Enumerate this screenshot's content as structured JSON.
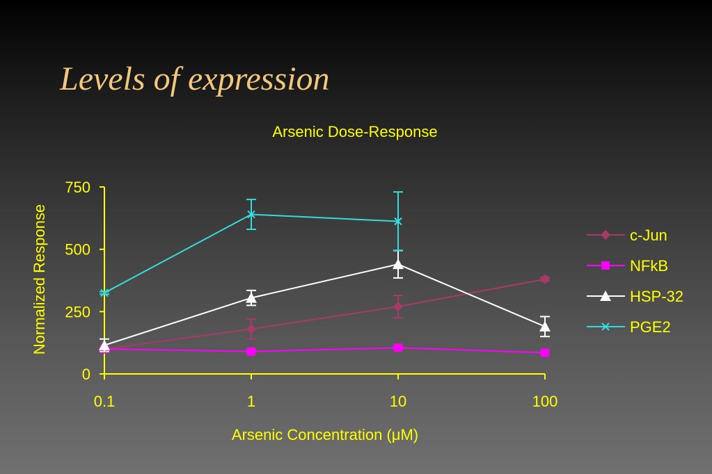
{
  "slide": {
    "title": "Levels of expression"
  },
  "colors": {
    "axis": "#ffff00",
    "c_jun": "#a83a6a",
    "nfkb": "#ff00ff",
    "hsp32": "#ffffff",
    "pge2": "#33dddd"
  },
  "chart_data": {
    "type": "line",
    "title": "Arsenic Dose-Response",
    "xlabel": "Arsenic Concentration (μM)",
    "ylabel": "Normalized Response",
    "xscale": "log",
    "x": [
      0.1,
      1,
      10,
      100
    ],
    "x_tick_labels": [
      "0.1",
      "1",
      "10",
      "100"
    ],
    "yticks": [
      0,
      250,
      500,
      750
    ],
    "ylim": [
      0,
      750
    ],
    "legend_position": "right",
    "series": [
      {
        "key": "c_jun",
        "name": "c-Jun",
        "marker": "diamond",
        "points": [
          {
            "x": 0.1,
            "y": 100,
            "err": 10
          },
          {
            "x": 1,
            "y": 180,
            "err": 40
          },
          {
            "x": 10,
            "y": 270,
            "err": 45
          },
          {
            "x": 100,
            "y": 380,
            "err": 8
          }
        ]
      },
      {
        "key": "nfkb",
        "name": "NFkB",
        "marker": "square",
        "points": [
          {
            "x": 0.1,
            "y": 100,
            "err": 5
          },
          {
            "x": 1,
            "y": 90,
            "err": 5
          },
          {
            "x": 10,
            "y": 105,
            "err": 5
          },
          {
            "x": 100,
            "y": 85,
            "err": 5
          }
        ]
      },
      {
        "key": "hsp32",
        "name": "HSP-32",
        "marker": "triangle",
        "points": [
          {
            "x": 0.1,
            "y": 115,
            "err": 25
          },
          {
            "x": 1,
            "y": 305,
            "err": 30
          },
          {
            "x": 10,
            "y": 440,
            "err": 55
          },
          {
            "x": 100,
            "y": 190,
            "err": 40
          }
        ]
      },
      {
        "key": "pge2",
        "name": "PGE2",
        "marker": "x",
        "points": [
          {
            "x": 0.1,
            "y": 325,
            "err": 5
          },
          {
            "x": 1,
            "y": 640,
            "err": 60
          },
          {
            "x": 10,
            "y": 612,
            "err": 118
          }
        ]
      }
    ]
  }
}
